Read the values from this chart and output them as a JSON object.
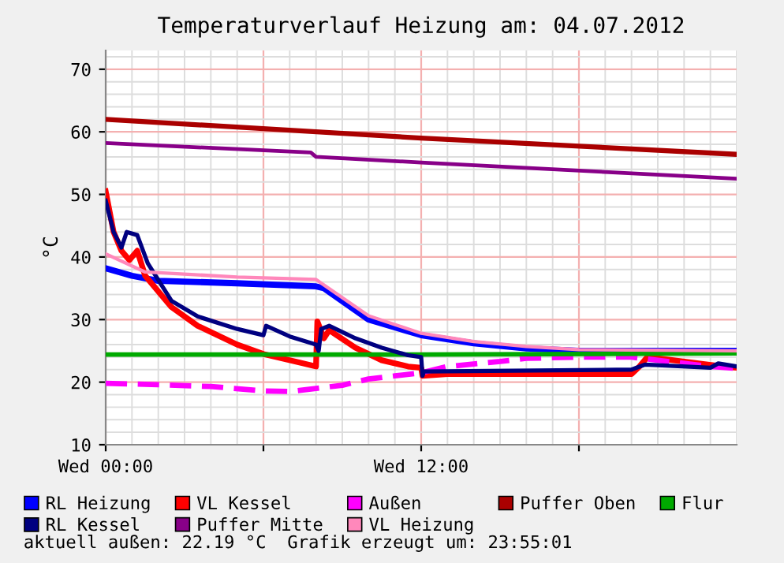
{
  "chart_data": {
    "type": "line",
    "title": "Temperaturverlauf Heizung am: 04.07.2012",
    "ylabel": "°C",
    "xlim": [
      "2012-07-04T00:00",
      "2012-07-05T00:00"
    ],
    "xticks": [
      {
        "value": "2012-07-04T00:00",
        "label": "Wed 00:00"
      },
      {
        "value": "2012-07-04T06:00",
        "label": null
      },
      {
        "value": "2012-07-04T12:00",
        "label": "Wed 12:00"
      },
      {
        "value": "2012-07-04T18:00",
        "label": null
      }
    ],
    "ylim": [
      10,
      73
    ],
    "yticks": [
      10,
      20,
      30,
      40,
      50,
      60,
      70
    ],
    "grid": true,
    "legend": "bottom",
    "marker": "none",
    "line_style": "solid",
    "annotations": [
      "aktuell außen: 22.19 °C  Grafik erzeugt um: 23:55:01"
    ],
    "series": [
      {
        "name": "RL Heizung",
        "color": "#0000ff",
        "x": [
          "2012-07-04T00:00",
          "2012-07-04T01:00",
          "2012-07-04T02:00",
          "2012-07-04T05:00",
          "2012-07-04T08:00",
          "2012-07-04T08:18",
          "2012-07-04T10:00",
          "2012-07-04T12:00",
          "2012-07-04T14:00",
          "2012-07-04T16:00",
          "2012-07-04T18:00",
          "2012-07-05T00:00"
        ],
        "values": [
          38.2,
          37,
          36.2,
          35.8,
          35.3,
          35,
          30,
          27.5,
          26.2,
          25.4,
          25,
          25
        ]
      },
      {
        "name": "VL Kessel",
        "color": "#ff0000",
        "x": [
          "2012-07-04T00:00",
          "2012-07-04T00:18",
          "2012-07-04T00:36",
          "2012-07-04T00:54",
          "2012-07-04T01:12",
          "2012-07-04T01:30",
          "2012-07-04T02:30",
          "2012-07-04T03:30",
          "2012-07-04T05:00",
          "2012-07-04T06:00",
          "2012-07-04T07:30",
          "2012-07-04T08:00",
          "2012-07-04T08:03",
          "2012-07-04T08:18",
          "2012-07-04T08:30",
          "2012-07-04T09:30",
          "2012-07-04T10:30",
          "2012-07-04T11:30",
          "2012-07-04T12:00",
          "2012-07-04T12:03",
          "2012-07-04T13:00",
          "2012-07-04T20:00",
          "2012-07-04T20:18",
          "2012-07-04T20:36",
          "2012-07-04T21:00",
          "2012-07-04T23:30",
          "2012-07-05T00:00"
        ],
        "values": [
          50.5,
          44,
          41,
          39.5,
          41,
          37,
          32,
          29,
          26,
          24.5,
          23,
          22.5,
          29.7,
          27,
          28.3,
          25.5,
          23.5,
          22.5,
          22.3,
          21,
          21.3,
          21.3,
          22.5,
          24,
          23.8,
          22.5,
          22.3
        ]
      },
      {
        "name": "Außen",
        "color": "#ff00ff",
        "line_style": "dashed",
        "x": [
          "2012-07-04T00:00",
          "2012-07-04T02:00",
          "2012-07-04T04:00",
          "2012-07-04T06:00",
          "2012-07-04T07:00",
          "2012-07-04T08:00",
          "2012-07-04T09:00",
          "2012-07-04T10:00",
          "2012-07-04T11:00",
          "2012-07-04T12:00",
          "2012-07-04T13:00",
          "2012-07-04T15:00",
          "2012-07-04T16:00",
          "2012-07-04T18:00",
          "2012-07-04T20:00",
          "2012-07-04T21:00",
          "2012-07-04T23:00",
          "2012-07-05T00:00"
        ],
        "values": [
          19.8,
          19.6,
          19.3,
          18.6,
          18.5,
          19,
          19.5,
          20.5,
          21,
          21.5,
          22.5,
          23.3,
          23.8,
          24,
          24,
          23.5,
          22.5,
          22.2
        ]
      },
      {
        "name": "Puffer Oben",
        "color": "#aa0000",
        "x": [
          "2012-07-04T00:00",
          "2012-07-04T12:00",
          "2012-07-05T00:00"
        ],
        "values": [
          62,
          59,
          56.4
        ]
      },
      {
        "name": "Flur",
        "color": "#00aa00",
        "x": [
          "2012-07-04T00:00",
          "2012-07-04T12:00",
          "2012-07-05T00:00"
        ],
        "values": [
          24.4,
          24.4,
          24.6
        ]
      },
      {
        "name": "RL Kessel",
        "color": "#000080",
        "x": [
          "2012-07-04T00:00",
          "2012-07-04T00:18",
          "2012-07-04T00:36",
          "2012-07-04T00:48",
          "2012-07-04T01:12",
          "2012-07-04T01:36",
          "2012-07-04T02:30",
          "2012-07-04T03:30",
          "2012-07-04T05:00",
          "2012-07-04T06:00",
          "2012-07-04T06:06",
          "2012-07-04T07:00",
          "2012-07-04T08:00",
          "2012-07-04T08:06",
          "2012-07-04T08:12",
          "2012-07-04T08:30",
          "2012-07-04T09:30",
          "2012-07-04T10:30",
          "2012-07-04T11:30",
          "2012-07-04T12:00",
          "2012-07-04T12:03",
          "2012-07-04T12:06",
          "2012-07-04T20:00",
          "2012-07-04T20:30",
          "2012-07-04T21:00",
          "2012-07-04T23:00",
          "2012-07-04T23:18",
          "2012-07-05T00:00"
        ],
        "values": [
          49,
          44,
          41.5,
          44,
          43.5,
          39,
          33,
          30.5,
          28.5,
          27.5,
          29,
          27.3,
          26,
          25,
          28.5,
          29,
          27,
          25.5,
          24.3,
          24,
          21,
          21.7,
          22,
          22.8,
          22.7,
          22.3,
          23,
          22.5
        ]
      },
      {
        "name": "Puffer Mitte",
        "color": "#880088",
        "x": [
          "2012-07-04T00:00",
          "2012-07-04T07:48",
          "2012-07-04T08:00",
          "2012-07-04T12:00",
          "2012-07-05T00:00"
        ],
        "values": [
          58.2,
          56.7,
          56,
          55.1,
          52.5
        ]
      },
      {
        "name": "VL Heizung",
        "color": "#ff88bb",
        "x": [
          "2012-07-04T00:00",
          "2012-07-04T01:30",
          "2012-07-04T05:00",
          "2012-07-04T08:00",
          "2012-07-04T10:00",
          "2012-07-04T12:00",
          "2012-07-04T14:00",
          "2012-07-04T16:00",
          "2012-07-04T18:00",
          "2012-07-05T00:00"
        ],
        "values": [
          40.5,
          37.6,
          36.8,
          36.4,
          30.6,
          27.8,
          26.5,
          25.7,
          25.2,
          25
        ]
      }
    ]
  }
}
